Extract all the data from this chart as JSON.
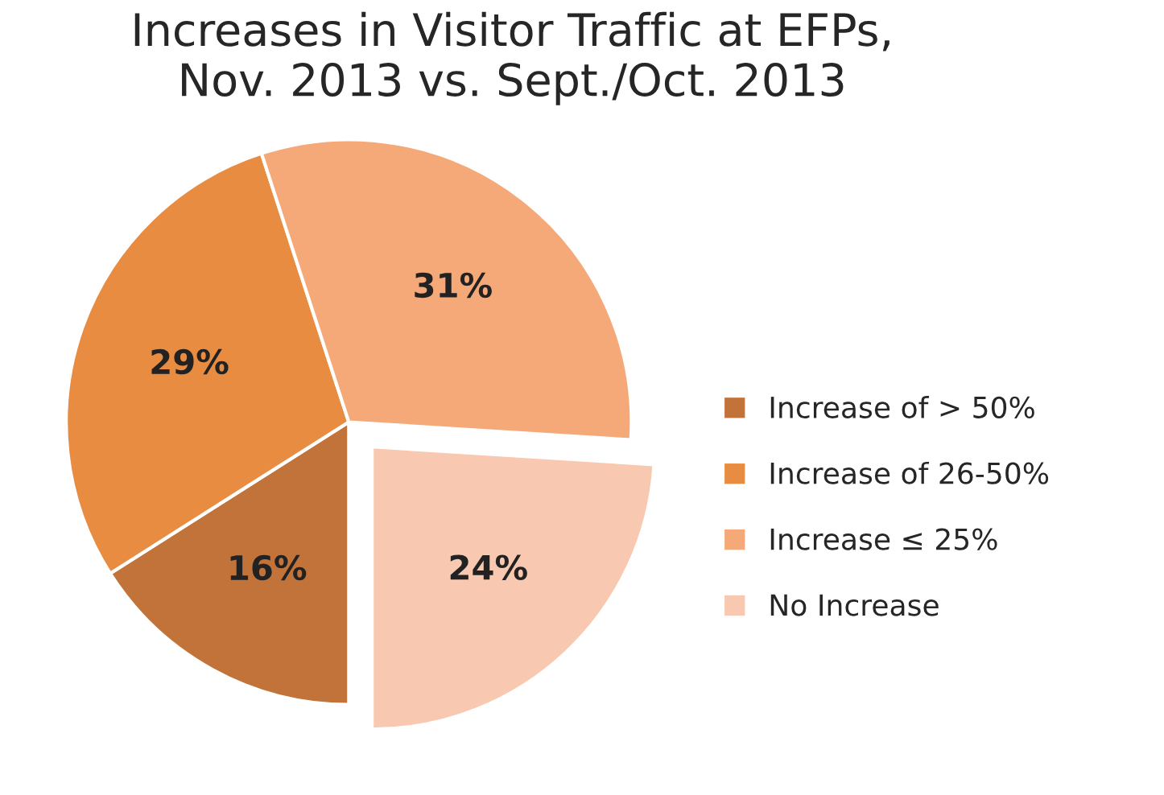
{
  "chart_data": {
    "type": "pie",
    "title": "Increases in Visitor Traffic at EFPs,\nNov. 2013 vs. Sept./Oct. 2013",
    "categories": [
      "Increase of > 50%",
      "Increase of 26-50%",
      "Increase ≤ 25%",
      "No Increase"
    ],
    "values": [
      16,
      29,
      31,
      24
    ],
    "colors": [
      "#c2733a",
      "#e88c42",
      "#f5a978",
      "#f8c9b0"
    ],
    "value_labels": [
      "16%",
      "29%",
      "31%",
      "24%"
    ],
    "legend": "right"
  }
}
